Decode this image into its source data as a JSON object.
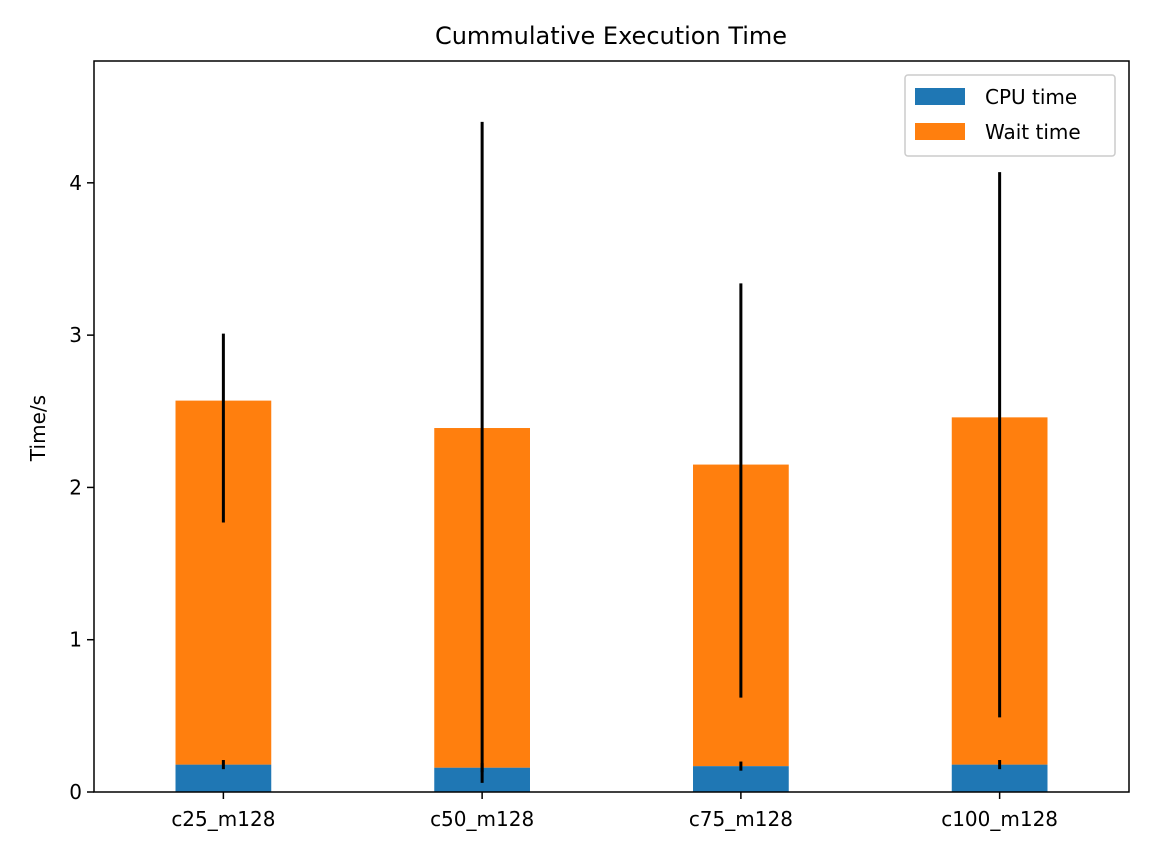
{
  "chart_data": {
    "type": "bar",
    "stacked": true,
    "title": "Cummulative Execution Time",
    "xlabel": "",
    "ylabel": "Time/s",
    "categories": [
      "c25_m128",
      "c50_m128",
      "c75_m128",
      "c100_m128"
    ],
    "ylim": [
      0,
      4.8
    ],
    "yticks": [
      "0",
      "1",
      "2",
      "3",
      "4"
    ],
    "grid": false,
    "legend_position": "top-right",
    "series": [
      {
        "name": "CPU time",
        "color": "#1f77b4",
        "values": [
          0.18,
          0.16,
          0.17,
          0.18
        ],
        "error": [
          0.03,
          0.03,
          0.03,
          0.03
        ]
      },
      {
        "name": "Wait time",
        "color": "#ff7f0e",
        "values": [
          2.39,
          2.23,
          1.98,
          2.28
        ],
        "error": [
          0.62,
          2.17,
          1.36,
          1.79
        ]
      }
    ]
  }
}
